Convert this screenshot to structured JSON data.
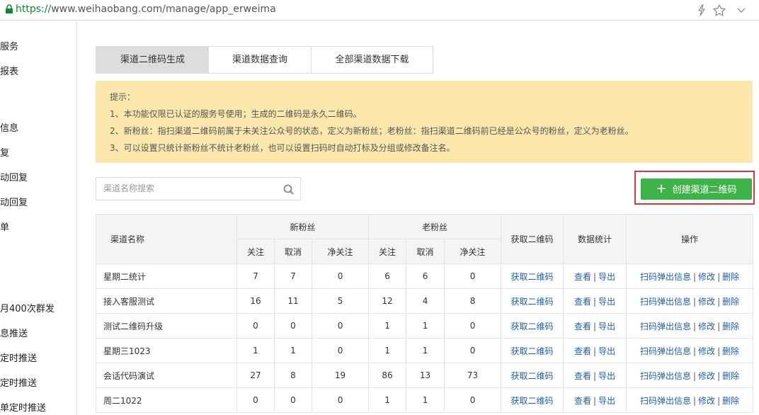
{
  "browser": {
    "url_scheme": "https://",
    "url_rest": "www.weihaobang.com/manage/app_erweima"
  },
  "sidebar": {
    "items": [
      "服务",
      "报表",
      "信息",
      "复",
      "动回复",
      "动回复",
      "单",
      "月400次群发",
      "息推送",
      "定时推送",
      "定时推送",
      "单定时推送"
    ]
  },
  "tabs": [
    "渠道二维码生成",
    "渠道数据查询",
    "全部渠道数据下载"
  ],
  "notice": {
    "title": "提示：",
    "lines": [
      "1、本功能仅限已认证的服务号使用；生成的二维码是永久二维码。",
      "2、新粉丝：指扫渠道二维码前属于未关注公众号的状态，定义为新粉丝；老粉丝：指扫渠道二维码前已经是公众号的粉丝，定义为老粉丝。",
      "3、可以设置只统计新粉丝不统计老粉丝，也可以设置扫码时自动打标及分组或修改备注名。"
    ]
  },
  "search": {
    "placeholder": "渠道名称搜索"
  },
  "create_button": {
    "icon": "+",
    "label": "创建渠道二维码"
  },
  "table": {
    "headers": {
      "name": "渠道名称",
      "new_fans": "新粉丝",
      "old_fans": "老粉丝",
      "get_qr": "获取二维码",
      "stats": "数据统计",
      "actions": "操作",
      "sub": [
        "关注",
        "取消",
        "净关注",
        "关注",
        "取消",
        "净关注"
      ]
    },
    "rows": [
      [
        "星期二统计",
        7,
        7,
        0,
        6,
        6,
        0
      ],
      [
        "接入客服测试",
        16,
        11,
        5,
        12,
        4,
        8
      ],
      [
        "测试二维码升级",
        0,
        0,
        0,
        1,
        1,
        0
      ],
      [
        "星期三1023",
        1,
        1,
        0,
        1,
        1,
        0
      ],
      [
        "会话代码演试",
        27,
        8,
        19,
        86,
        13,
        73
      ],
      [
        "周二1022",
        0,
        0,
        0,
        1,
        1,
        0
      ]
    ],
    "links": {
      "get_qr": "获取二维码",
      "view": "查看",
      "export": "导出",
      "scan_popup": "扫码弹出信息",
      "edit": "修改",
      "delete": "删除",
      "separator": "|"
    }
  }
}
